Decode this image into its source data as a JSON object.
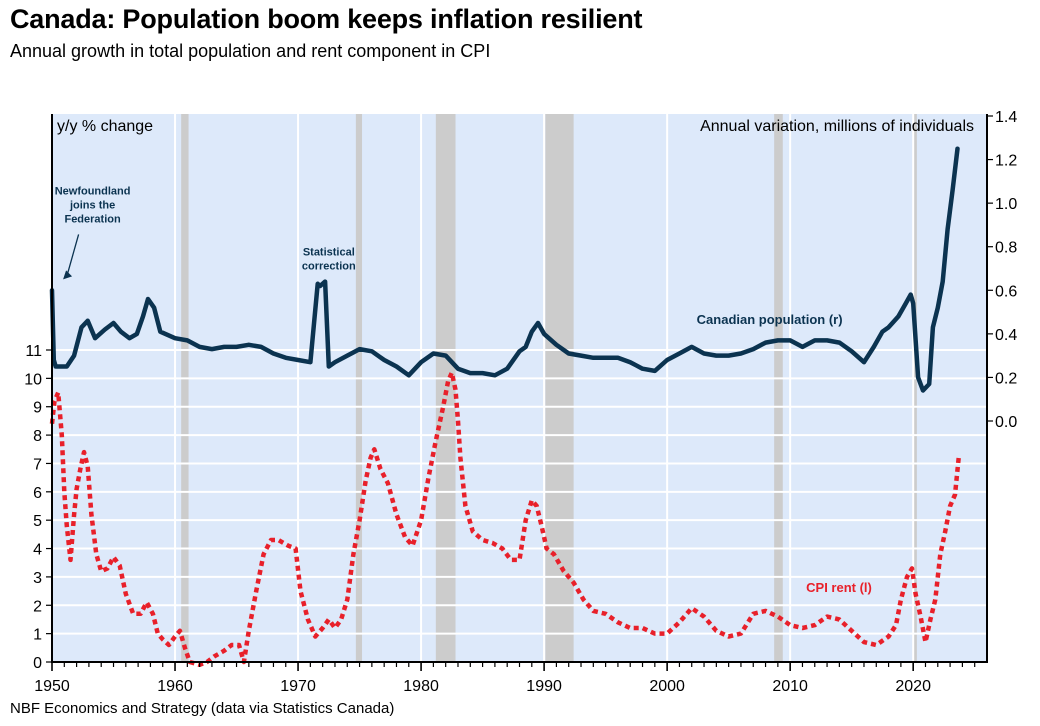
{
  "chart_data": {
    "type": "line",
    "title": "Canada: Population boom keeps inflation resilient",
    "subtitle": "Annual growth in total population and rent component in CPI",
    "source": "NBF Economics and Strategy (data via Statistics Canada)",
    "left_axis_label": "y/y % change",
    "right_axis_label": "Annual variation, millions of individuals",
    "xlim": [
      1950,
      2026
    ],
    "x_ticks": [
      "1950",
      "1960",
      "1970",
      "1980",
      "1990",
      "2000",
      "2010",
      "2020"
    ],
    "left_ylim": [
      0,
      12
    ],
    "left_ticks": [
      "0",
      "1",
      "2",
      "3",
      "4",
      "5",
      "6",
      "7",
      "8",
      "9",
      "10",
      "11"
    ],
    "right_ylim": [
      -0.9,
      1.4
    ],
    "right_ticks": [
      "0.0",
      "0.2",
      "0.4",
      "0.6",
      "0.8",
      "1.0",
      "1.2",
      "1.4"
    ],
    "grid": true,
    "recessions": [
      [
        1960.5,
        1961.1
      ],
      [
        1974.7,
        1975.2
      ],
      [
        1981.2,
        1982.8
      ],
      [
        1990.1,
        1992.4
      ],
      [
        2008.7,
        2009.4
      ],
      [
        2020.0,
        2020.3
      ]
    ],
    "annotations": [
      {
        "text": [
          "Newfoundland",
          "joins the",
          "Federation"
        ],
        "x": 1953.3,
        "y_right": 1.04,
        "arrow_to": [
          1950.9,
          0.65
        ]
      },
      {
        "text": [
          "Statistical",
          "correction"
        ],
        "x": 1972.5,
        "y_right": 0.76
      }
    ],
    "series": [
      {
        "name": "Canadian population (r)",
        "axis": "right",
        "style": "solid",
        "color": "#0b3350",
        "x": [
          1950.0,
          1950.15,
          1950.3,
          1951.2,
          1951.8,
          1952.4,
          1952.9,
          1953.5,
          1954.3,
          1955.0,
          1955.6,
          1956.3,
          1956.9,
          1957.4,
          1957.8,
          1958.3,
          1958.8,
          1960.0,
          1961.0,
          1962.0,
          1963.0,
          1964.0,
          1965.0,
          1966.0,
          1967.0,
          1968.0,
          1969.0,
          1970.0,
          1971.0,
          1971.6,
          1971.8,
          1972.2,
          1972.5,
          1973.0,
          1974.0,
          1975.0,
          1976.0,
          1977.0,
          1978.0,
          1979.0,
          1980.0,
          1981.0,
          1982.0,
          1983.0,
          1984.0,
          1985.0,
          1986.0,
          1987.0,
          1988.0,
          1988.5,
          1989.0,
          1989.5,
          1990.0,
          1991.0,
          1992.0,
          1993.0,
          1994.0,
          1995.0,
          1996.0,
          1997.0,
          1998.0,
          1999.0,
          2000.0,
          2001.0,
          2002.0,
          2003.0,
          2004.0,
          2005.0,
          2006.0,
          2007.0,
          2008.0,
          2009.0,
          2010.0,
          2011.0,
          2012.0,
          2013.0,
          2014.0,
          2015.0,
          2016.0,
          2016.8,
          2017.5,
          2018.0,
          2018.8,
          2019.4,
          2019.8,
          2020.0,
          2020.4,
          2020.8,
          2021.3,
          2021.6,
          2022.0,
          2022.4,
          2022.8,
          2023.2,
          2023.6
        ],
        "values": [
          0.6,
          0.28,
          0.25,
          0.25,
          0.3,
          0.43,
          0.46,
          0.38,
          0.42,
          0.45,
          0.41,
          0.38,
          0.4,
          0.48,
          0.56,
          0.52,
          0.41,
          0.38,
          0.37,
          0.34,
          0.33,
          0.34,
          0.34,
          0.35,
          0.34,
          0.31,
          0.29,
          0.28,
          0.27,
          0.63,
          0.62,
          0.64,
          0.25,
          0.27,
          0.3,
          0.33,
          0.32,
          0.28,
          0.25,
          0.21,
          0.27,
          0.31,
          0.3,
          0.24,
          0.22,
          0.22,
          0.21,
          0.24,
          0.32,
          0.34,
          0.41,
          0.45,
          0.4,
          0.35,
          0.31,
          0.3,
          0.29,
          0.29,
          0.29,
          0.27,
          0.24,
          0.23,
          0.28,
          0.31,
          0.34,
          0.31,
          0.3,
          0.3,
          0.31,
          0.33,
          0.36,
          0.37,
          0.37,
          0.34,
          0.37,
          0.37,
          0.36,
          0.32,
          0.27,
          0.34,
          0.41,
          0.43,
          0.48,
          0.54,
          0.58,
          0.54,
          0.2,
          0.14,
          0.17,
          0.43,
          0.52,
          0.64,
          0.88,
          1.06,
          1.25
        ]
      },
      {
        "name": "CPI rent (l)",
        "axis": "left",
        "style": "dotted",
        "color": "#e8202a",
        "x": [
          1950.0,
          1950.2,
          1950.5,
          1950.8,
          1951.0,
          1951.2,
          1951.5,
          1951.8,
          1952.0,
          1952.3,
          1952.6,
          1952.9,
          1953.2,
          1953.6,
          1954.0,
          1954.5,
          1955.0,
          1955.5,
          1956.0,
          1956.6,
          1957.2,
          1957.7,
          1958.2,
          1958.6,
          1959.0,
          1959.5,
          1960.0,
          1960.4,
          1960.8,
          1961.2,
          1962.0,
          1962.6,
          1963.2,
          1964.0,
          1964.6,
          1965.2,
          1965.6,
          1966.0,
          1966.6,
          1967.2,
          1967.8,
          1968.4,
          1969.2,
          1969.8,
          1970.2,
          1970.8,
          1971.4,
          1972.0,
          1972.5,
          1973.0,
          1973.5,
          1974.0,
          1974.5,
          1975.0,
          1975.5,
          1975.9,
          1976.2,
          1976.7,
          1977.3,
          1978.0,
          1978.7,
          1979.3,
          1980.0,
          1980.6,
          1981.2,
          1981.8,
          1982.2,
          1982.5,
          1982.8,
          1983.0,
          1983.2,
          1983.6,
          1984.2,
          1985.0,
          1985.8,
          1986.6,
          1987.3,
          1988.0,
          1988.5,
          1989.0,
          1989.4,
          1989.8,
          1990.2,
          1990.8,
          1991.6,
          1992.4,
          1993.2,
          1994.0,
          1995.0,
          1996.0,
          1997.0,
          1998.0,
          1999.0,
          2000.0,
          2001.0,
          2002.0,
          2003.0,
          2004.0,
          2005.0,
          2006.0,
          2007.0,
          2008.0,
          2009.0,
          2010.0,
          2011.0,
          2012.0,
          2013.0,
          2014.0,
          2015.0,
          2016.0,
          2017.0,
          2018.0,
          2018.6,
          2019.0,
          2019.5,
          2019.9,
          2020.2,
          2020.6,
          2021.0,
          2021.4,
          2021.8,
          2022.2,
          2022.6,
          2023.0,
          2023.4,
          2023.7
        ],
        "values": [
          8.4,
          9.2,
          9.5,
          8.0,
          6.0,
          4.8,
          3.6,
          5.2,
          6.1,
          6.8,
          7.4,
          6.9,
          5.2,
          3.8,
          3.2,
          3.3,
          3.7,
          3.4,
          2.4,
          1.7,
          1.7,
          2.1,
          1.7,
          1.0,
          0.8,
          0.6,
          0.9,
          1.1,
          0.5,
          0.0,
          -0.1,
          0.0,
          0.2,
          0.4,
          0.6,
          0.6,
          0.0,
          1.1,
          2.5,
          3.8,
          4.3,
          4.3,
          4.1,
          4.0,
          2.5,
          1.5,
          0.9,
          1.2,
          1.5,
          1.2,
          1.5,
          2.2,
          3.8,
          5.0,
          6.4,
          7.2,
          7.5,
          6.8,
          6.3,
          5.2,
          4.4,
          4.1,
          5.0,
          6.5,
          7.8,
          9.0,
          9.9,
          10.2,
          9.6,
          8.5,
          7.2,
          5.5,
          4.6,
          4.3,
          4.2,
          4.0,
          3.6,
          3.6,
          5.0,
          5.7,
          5.5,
          4.8,
          4.0,
          3.8,
          3.2,
          2.8,
          2.2,
          1.8,
          1.7,
          1.4,
          1.2,
          1.2,
          1.0,
          1.0,
          1.4,
          1.9,
          1.6,
          1.1,
          0.9,
          1.0,
          1.7,
          1.8,
          1.6,
          1.3,
          1.2,
          1.3,
          1.6,
          1.5,
          1.1,
          0.7,
          0.6,
          0.9,
          1.3,
          2.2,
          3.0,
          3.3,
          2.4,
          1.6,
          0.7,
          1.5,
          2.2,
          3.8,
          4.6,
          5.5,
          5.9,
          7.2
        ]
      }
    ]
  }
}
